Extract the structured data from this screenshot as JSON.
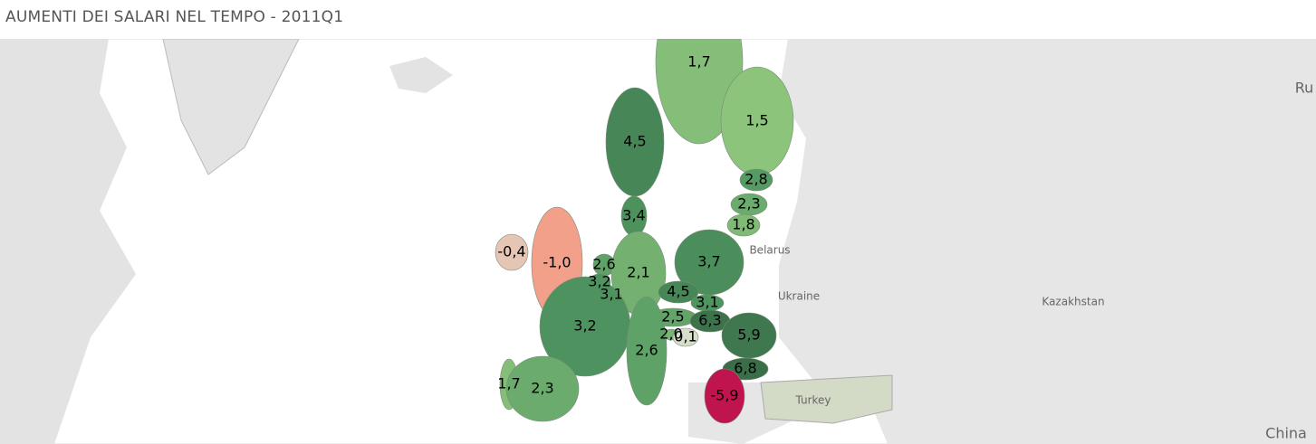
{
  "title": "AUMENTI DEI SALARI NEL TEMPO - 2011Q1",
  "regions": [
    {
      "value": 1.7,
      "label": "1,7"
    },
    {
      "value": 1.5,
      "label": "1,5"
    },
    {
      "value": 4.5,
      "label": "4,5"
    },
    {
      "value": 2.8,
      "label": "2,8"
    },
    {
      "value": 2.3,
      "label": "2,3"
    },
    {
      "value": 1.8,
      "label": "1,8"
    },
    {
      "value": 3.4,
      "label": "3,4"
    },
    {
      "value": -0.4,
      "label": "-0,4"
    },
    {
      "value": -1.0,
      "label": "-1,0"
    },
    {
      "value": 2.6,
      "label": "2,6"
    },
    {
      "value": 3.2,
      "label": "3,2"
    },
    {
      "value": 3.1,
      "label": "3,1"
    },
    {
      "value": 2.1,
      "label": "2,1"
    },
    {
      "value": 3.7,
      "label": "3,7"
    },
    {
      "value": 4.5,
      "label": "4,5"
    },
    {
      "value": 3.1,
      "label": "3,1"
    },
    {
      "value": 2.5,
      "label": "2,5"
    },
    {
      "value": 6.3,
      "label": "6,3"
    },
    {
      "value": 2.0,
      "label": "2,0"
    },
    {
      "value": 0.1,
      "label": "0,1"
    },
    {
      "value": 5.9,
      "label": "5,9"
    },
    {
      "value": 3.2,
      "label": "3,2"
    },
    {
      "value": 2.6,
      "label": "2,6"
    },
    {
      "value": 6.8,
      "label": "6,8"
    },
    {
      "value": 1.7,
      "label": "1,7"
    },
    {
      "value": 2.3,
      "label": "2,3"
    },
    {
      "value": -5.9,
      "label": "-5,9"
    }
  ],
  "basemap_labels": [
    "Belarus",
    "Ukraine",
    "Kazakhstan",
    "Turkey",
    "China",
    "Ru"
  ]
}
